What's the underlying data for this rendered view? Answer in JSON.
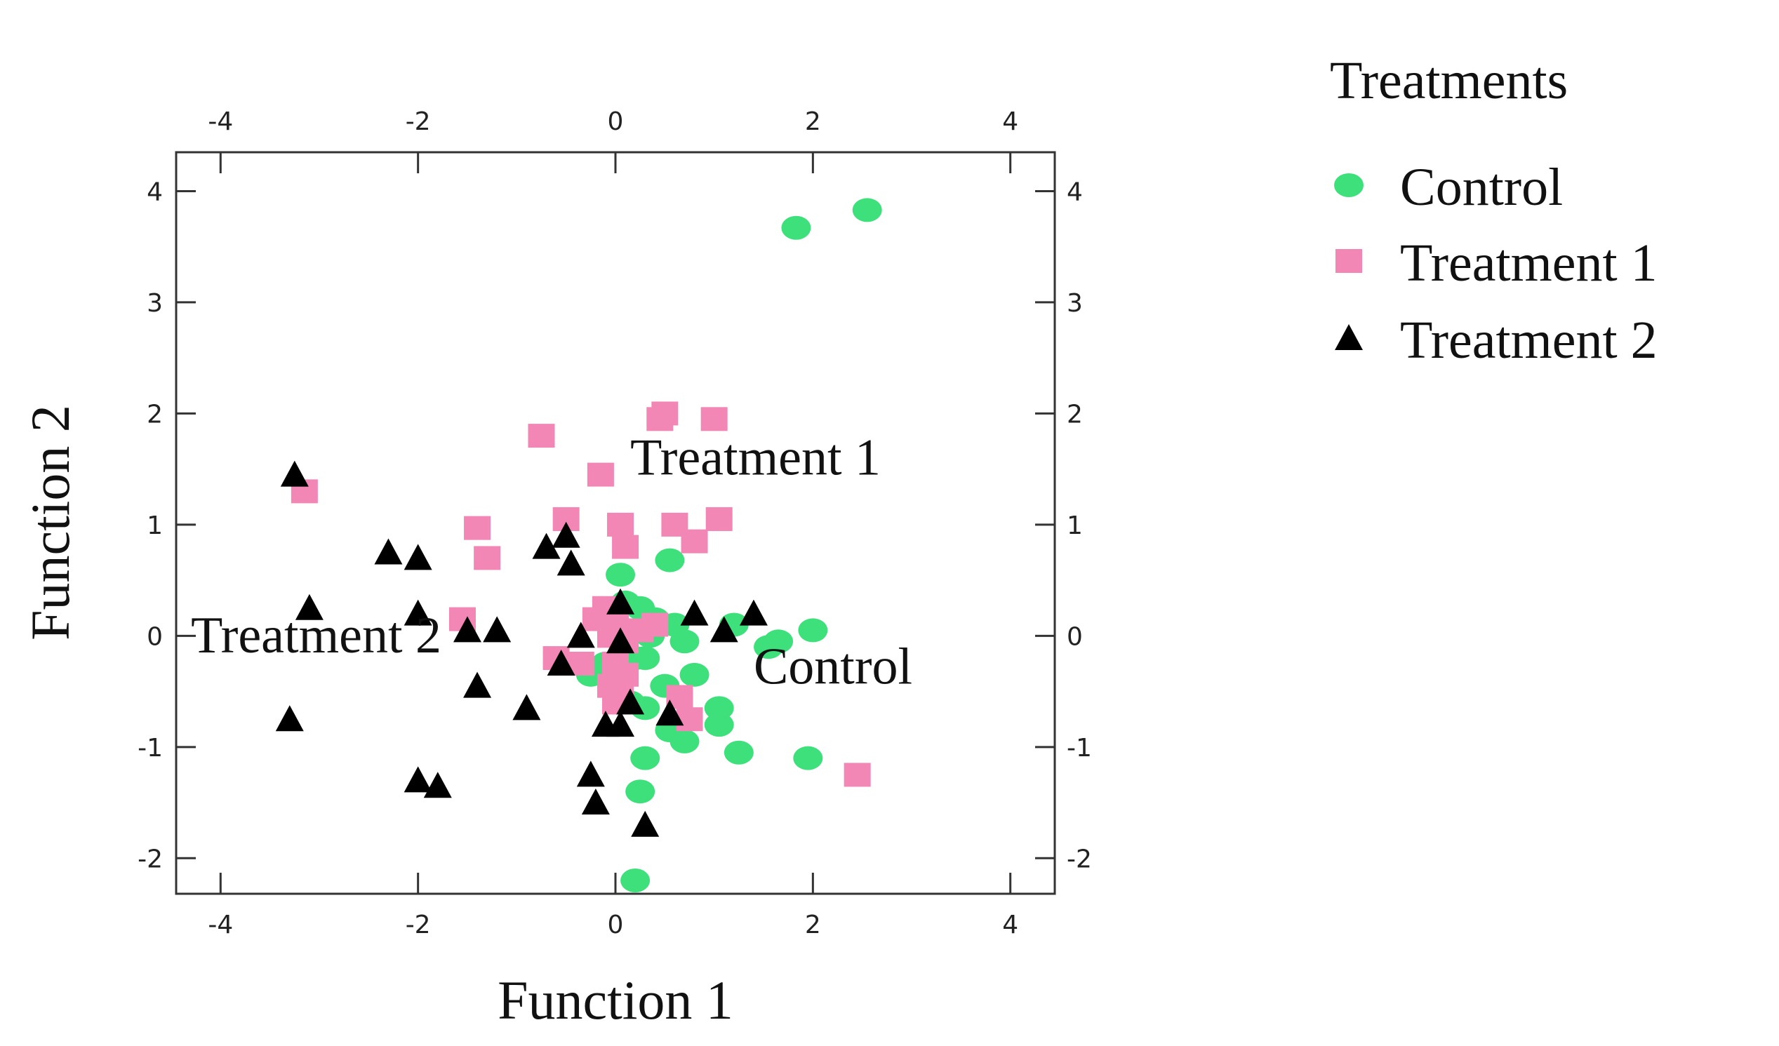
{
  "chart_data": {
    "type": "scatter",
    "title": "",
    "xlabel": "Function 1",
    "ylabel": "Function 2",
    "xlim": [
      -4.45,
      4.45
    ],
    "ylim": [
      -2.32,
      4.35
    ],
    "xticks": [
      -4,
      -2,
      0,
      2,
      4
    ],
    "yticks": [
      -2,
      -1,
      0,
      1,
      2,
      3,
      4
    ],
    "xtick_labels": [
      "-4",
      "-2",
      "0",
      "2",
      "4"
    ],
    "ytick_labels": [
      "-2",
      "-1",
      "0",
      "1",
      "2",
      "3",
      "4"
    ],
    "legend_title": "Treatments",
    "legend_position": "right",
    "series": [
      {
        "name": "Control",
        "marker": "circle",
        "color": "#3ee07c",
        "points": [
          [
            1.83,
            3.67
          ],
          [
            2.55,
            3.83
          ],
          [
            0.55,
            0.68
          ],
          [
            0.05,
            0.55
          ],
          [
            0.25,
            0.25
          ],
          [
            0.1,
            0.3
          ],
          [
            0.6,
            0.1
          ],
          [
            0.7,
            -0.05
          ],
          [
            0.35,
            0.0
          ],
          [
            0.2,
            -0.2
          ],
          [
            0.3,
            -0.2
          ],
          [
            -0.25,
            -0.35
          ],
          [
            0.8,
            -0.35
          ],
          [
            0.0,
            -0.5
          ],
          [
            0.3,
            -0.65
          ],
          [
            0.55,
            -0.85
          ],
          [
            0.7,
            -0.95
          ],
          [
            1.05,
            -0.65
          ],
          [
            1.05,
            -0.8
          ],
          [
            1.25,
            -1.05
          ],
          [
            0.3,
            -1.1
          ],
          [
            0.25,
            -1.4
          ],
          [
            0.2,
            -2.2
          ],
          [
            1.95,
            -1.1
          ],
          [
            1.55,
            -0.1
          ],
          [
            1.65,
            -0.05
          ],
          [
            2.0,
            0.05
          ],
          [
            1.2,
            0.1
          ],
          [
            0.5,
            -0.45
          ],
          [
            0.15,
            -0.6
          ],
          [
            0.4,
            0.15
          ],
          [
            -0.1,
            -0.25
          ]
        ]
      },
      {
        "name": "Treatment 1",
        "marker": "square",
        "color": "#f287b5",
        "points": [
          [
            0.45,
            1.95
          ],
          [
            0.5,
            2.0
          ],
          [
            1.0,
            1.95
          ],
          [
            -0.75,
            1.8
          ],
          [
            -0.15,
            1.45
          ],
          [
            -3.15,
            1.3
          ],
          [
            -0.5,
            1.05
          ],
          [
            0.05,
            1.0
          ],
          [
            0.6,
            1.0
          ],
          [
            1.05,
            1.05
          ],
          [
            -1.4,
            0.97
          ],
          [
            -1.3,
            0.7
          ],
          [
            0.1,
            0.8
          ],
          [
            0.8,
            0.85
          ],
          [
            -1.55,
            0.15
          ],
          [
            -0.1,
            0.25
          ],
          [
            -0.2,
            0.15
          ],
          [
            0.0,
            0.15
          ],
          [
            0.25,
            0.05
          ],
          [
            0.4,
            0.1
          ],
          [
            -0.6,
            -0.2
          ],
          [
            -0.35,
            -0.25
          ],
          [
            0.0,
            -0.25
          ],
          [
            0.1,
            -0.35
          ],
          [
            -0.05,
            -0.45
          ],
          [
            0.05,
            -0.5
          ],
          [
            0.0,
            -0.6
          ],
          [
            0.65,
            -0.55
          ],
          [
            0.75,
            -0.75
          ],
          [
            2.45,
            -1.25
          ],
          [
            0.1,
            -0.05
          ],
          [
            -0.05,
            0.0
          ]
        ]
      },
      {
        "name": "Treatment 2",
        "marker": "triangle",
        "color": "#000000",
        "points": [
          [
            -3.25,
            1.45
          ],
          [
            -2.3,
            0.75
          ],
          [
            -2.0,
            0.7
          ],
          [
            -0.7,
            0.8
          ],
          [
            -0.5,
            0.9
          ],
          [
            -0.45,
            0.65
          ],
          [
            -3.1,
            0.25
          ],
          [
            -2.0,
            0.2
          ],
          [
            0.05,
            0.3
          ],
          [
            0.8,
            0.2
          ],
          [
            1.4,
            0.2
          ],
          [
            -1.5,
            0.05
          ],
          [
            -1.2,
            0.05
          ],
          [
            -0.35,
            0.0
          ],
          [
            0.05,
            -0.05
          ],
          [
            1.1,
            0.05
          ],
          [
            -0.55,
            -0.25
          ],
          [
            -1.4,
            -0.45
          ],
          [
            -0.9,
            -0.65
          ],
          [
            -3.3,
            -0.75
          ],
          [
            0.15,
            -0.6
          ],
          [
            0.55,
            -0.7
          ],
          [
            -0.1,
            -0.8
          ],
          [
            0.05,
            -0.8
          ],
          [
            -2.0,
            -1.3
          ],
          [
            -1.8,
            -1.35
          ],
          [
            -0.25,
            -1.25
          ],
          [
            -0.2,
            -1.5
          ],
          [
            0.3,
            -1.7
          ]
        ]
      }
    ],
    "annotations": [
      {
        "text": "Treatment 1",
        "x": 0.15,
        "y": 1.45
      },
      {
        "text": "Treatment 2",
        "x": -4.3,
        "y": -0.15
      },
      {
        "text": "Control",
        "x": 1.4,
        "y": -0.43
      }
    ]
  }
}
